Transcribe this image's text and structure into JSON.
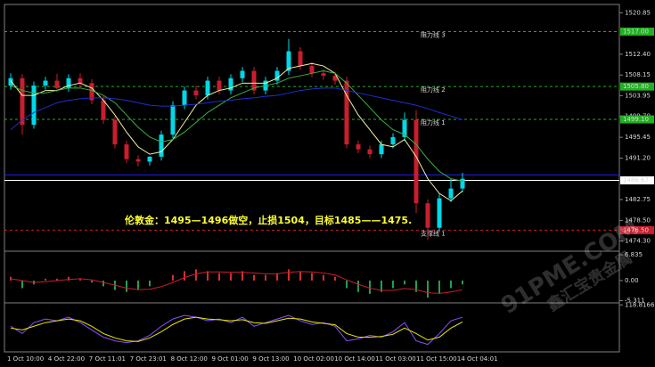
{
  "chart_data": {
    "type": "candlestick",
    "ylim": [
      1472.4,
      1522.0
    ],
    "yticks": [
      1520.85,
      {
        "value": 1512.4,
        "label": "1512.40"
      },
      1508.15,
      1503.95,
      {
        "value": 1499.7,
        "label": "1499.70"
      },
      1495.45,
      {
        "value": 1491.2,
        "label": "1491.20"
      },
      1482.75,
      {
        "value": 1478.5,
        "label": "1478.50"
      },
      {
        "value": 1474.3,
        "label": "1474.30"
      }
    ],
    "up_color": "#00d8e8",
    "down_color": "#c81e2e",
    "open": [
      1506,
      1507.5,
      1498,
      1506,
      1507,
      1505.5,
      1507.5,
      1506.5,
      1503,
      1499,
      1494,
      1491,
      1490.5,
      1491.5,
      1496,
      1502,
      1505,
      1504,
      1507,
      1505,
      1507.5,
      1509,
      1505,
      1507,
      1509,
      1513,
      1510,
      1508.5,
      1508,
      1507,
      1494,
      1493,
      1492,
      1494,
      1495.5,
      1499,
      1482,
      1477,
      1483,
      1485
    ],
    "high": [
      1508.5,
      1508.3,
      1506.8,
      1507.8,
      1508.4,
      1508.3,
      1508.5,
      1507.3,
      1503.8,
      1499.8,
      1494.8,
      1491.8,
      1491.6,
      1496.8,
      1502.8,
      1505.8,
      1506,
      1507.8,
      1507.8,
      1508.3,
      1509.8,
      1509.8,
      1507.8,
      1509.8,
      1515.5,
      1513.8,
      1510.8,
      1509.3,
      1508.8,
      1507.8,
      1494.8,
      1493.8,
      1494.8,
      1496.3,
      1500.5,
      1501,
      1482.8,
      1484,
      1487,
      1488.2
    ],
    "low": [
      1505.2,
      1496,
      1497.2,
      1505.2,
      1504.7,
      1504.7,
      1505.7,
      1502.2,
      1498.2,
      1493.2,
      1490.2,
      1489.5,
      1489.7,
      1490.7,
      1495.2,
      1501.2,
      1503.2,
      1503.2,
      1504.2,
      1504.2,
      1506.7,
      1504.2,
      1504.2,
      1506.2,
      1508.2,
      1509.2,
      1507.7,
      1507.2,
      1506.2,
      1493.2,
      1492.2,
      1491.2,
      1491.2,
      1493.2,
      1494.7,
      1480,
      1474.5,
      1476.2,
      1482.2,
      1484.2
    ],
    "close": [
      1507.5,
      1498,
      1506,
      1507,
      1505.5,
      1507.5,
      1506.5,
      1503,
      1499,
      1494,
      1491,
      1490.5,
      1491.5,
      1496,
      1502,
      1505,
      1504,
      1507,
      1505,
      1507.5,
      1509,
      1505,
      1507,
      1509,
      1513,
      1510,
      1508.5,
      1508,
      1507,
      1494,
      1493,
      1492,
      1494,
      1495.5,
      1499,
      1482,
      1477,
      1483,
      1485,
      1487
    ],
    "ma_lines": [
      {
        "color": "#f0f0a0",
        "values": [
          1507,
          1504,
          1504,
          1505,
          1505,
          1506,
          1506.5,
          1505.5,
          1503,
          1500,
          1496.5,
          1493.5,
          1492,
          1492.5,
          1495,
          1498.5,
          1502,
          1504,
          1505,
          1505.5,
          1506.5,
          1506.5,
          1506.5,
          1507.5,
          1509.5,
          1510,
          1510.5,
          1510,
          1508.5,
          1504,
          1500,
          1497,
          1494,
          1493.5,
          1495,
          1491.5,
          1487,
          1484,
          1482.5,
          1484.5
        ]
      },
      {
        "color": "#3cb043",
        "values": [
          1506,
          1505,
          1504.5,
          1504.5,
          1505,
          1505.5,
          1505.5,
          1505,
          1504,
          1502.5,
          1500,
          1497.5,
          1495.5,
          1494.5,
          1495,
          1496.5,
          1498.5,
          1500.5,
          1502,
          1503.5,
          1504.5,
          1505.5,
          1506,
          1506.5,
          1507.5,
          1508,
          1508.5,
          1509,
          1508.5,
          1506.5,
          1504,
          1501.5,
          1499,
          1497,
          1496,
          1494,
          1491,
          1488.5,
          1487,
          1486.5
        ]
      },
      {
        "color": "#1f2fd0",
        "values": [
          1497,
          1499,
          1500.5,
          1501.5,
          1502.5,
          1503,
          1503.3,
          1503.5,
          1503.5,
          1503.3,
          1503,
          1502.5,
          1502,
          1501.8,
          1501.8,
          1502,
          1502.2,
          1502.5,
          1502.8,
          1503,
          1503.3,
          1503.5,
          1503.8,
          1504,
          1504.5,
          1505,
          1505.3,
          1505.5,
          1505.5,
          1505,
          1504.5,
          1504,
          1503.5,
          1503,
          1502.5,
          1502,
          1501.3,
          1500.5,
          1499.8,
          1499
        ]
      }
    ],
    "levels": [
      {
        "name": "阻力线 3",
        "value": 1517.0,
        "tag": "1517.00",
        "color": "#22b022",
        "style": "dash"
      },
      {
        "name": "阻力线 2",
        "value": 1505.8,
        "tag": "1505.80",
        "color": "#22b022",
        "style": "dash"
      },
      {
        "name": "阻力线 1",
        "value": 1499.1,
        "tag": "1499.10",
        "color": "#22b022",
        "style": "dash"
      },
      {
        "value": 1487.8,
        "color": "#2020ff",
        "style": "solid"
      },
      {
        "value": 1486.67,
        "tag": "1486.67",
        "color": "#ffffff",
        "style": "solid"
      },
      {
        "name": "支撑线 1",
        "value": 1476.5,
        "tag": "1476.50",
        "color": "#c81e2e",
        "style": "dash"
      }
    ],
    "annotation": "伦敦金：1495—1496做空，止损1504，目标1485——1475.",
    "watermark": {
      "text": "91PME.COM",
      "subtext": "鑫汇宝贵金属"
    },
    "xlabels": [
      "1 Oct 10:00",
      "4 Oct 22:00",
      "7 Oct 11:01",
      "7 Oct 23:01",
      "8 Oct 12:00",
      "9 Oct 01:00",
      "9 Oct 13:00",
      "10 Oct 02:00",
      "10 Oct 14:00",
      "11 Oct 03:00",
      "11 Oct 15:00",
      "14 Oct 04:01"
    ],
    "macd": {
      "ylim": [
        -5.66,
        7.55
      ],
      "yticks": [
        6.835,
        {
          "value": 0,
          "label": "0.00"
        },
        -5.311
      ],
      "hist_colors": [
        "#d03030",
        "#20a050"
      ],
      "signal_color": "#c81e2e",
      "histogram": [
        1,
        -2,
        -1,
        0.5,
        0.5,
        1,
        0.5,
        -0.5,
        -1.5,
        -2.5,
        -3,
        -2.5,
        -1.5,
        0,
        1.5,
        2.5,
        3,
        2.5,
        2,
        2,
        2.5,
        1.5,
        1.5,
        2,
        3,
        2.5,
        2,
        1.5,
        1,
        -2,
        -3,
        -3.5,
        -3,
        -2,
        -1,
        -3,
        -4.5,
        -3.5,
        -2,
        -1
      ],
      "signal": [
        0.5,
        0,
        -0.5,
        -0.3,
        0,
        0.3,
        0.5,
        0.2,
        -0.5,
        -1.2,
        -2,
        -2.4,
        -2.3,
        -1.6,
        -0.5,
        0.8,
        1.8,
        2.3,
        2.3,
        2.2,
        2.2,
        2,
        1.8,
        1.8,
        2.2,
        2.4,
        2.3,
        2,
        1.5,
        0.2,
        -1,
        -2,
        -2.6,
        -2.6,
        -2.1,
        -2.4,
        -3.2,
        -3.4,
        -3,
        -2.4
      ]
    },
    "stoch": {
      "ylim": [
        -8,
        122
      ],
      "yticks": [
        118.8166
      ],
      "lines": [
        {
          "color": "#8a4fff",
          "values": [
            60,
            40,
            70,
            80,
            75,
            85,
            70,
            50,
            30,
            20,
            15,
            20,
            35,
            60,
            80,
            90,
            85,
            75,
            80,
            70,
            85,
            60,
            70,
            80,
            90,
            75,
            65,
            70,
            60,
            20,
            25,
            35,
            30,
            45,
            70,
            20,
            10,
            40,
            75,
            85
          ]
        },
        {
          "color": "#e6e600",
          "values": [
            55,
            50,
            60,
            70,
            75,
            80,
            75,
            60,
            40,
            28,
            20,
            18,
            28,
            45,
            65,
            80,
            85,
            80,
            78,
            75,
            78,
            70,
            68,
            75,
            82,
            80,
            72,
            68,
            64,
            40,
            30,
            30,
            32,
            38,
            55,
            40,
            22,
            30,
            55,
            72
          ]
        }
      ]
    }
  }
}
